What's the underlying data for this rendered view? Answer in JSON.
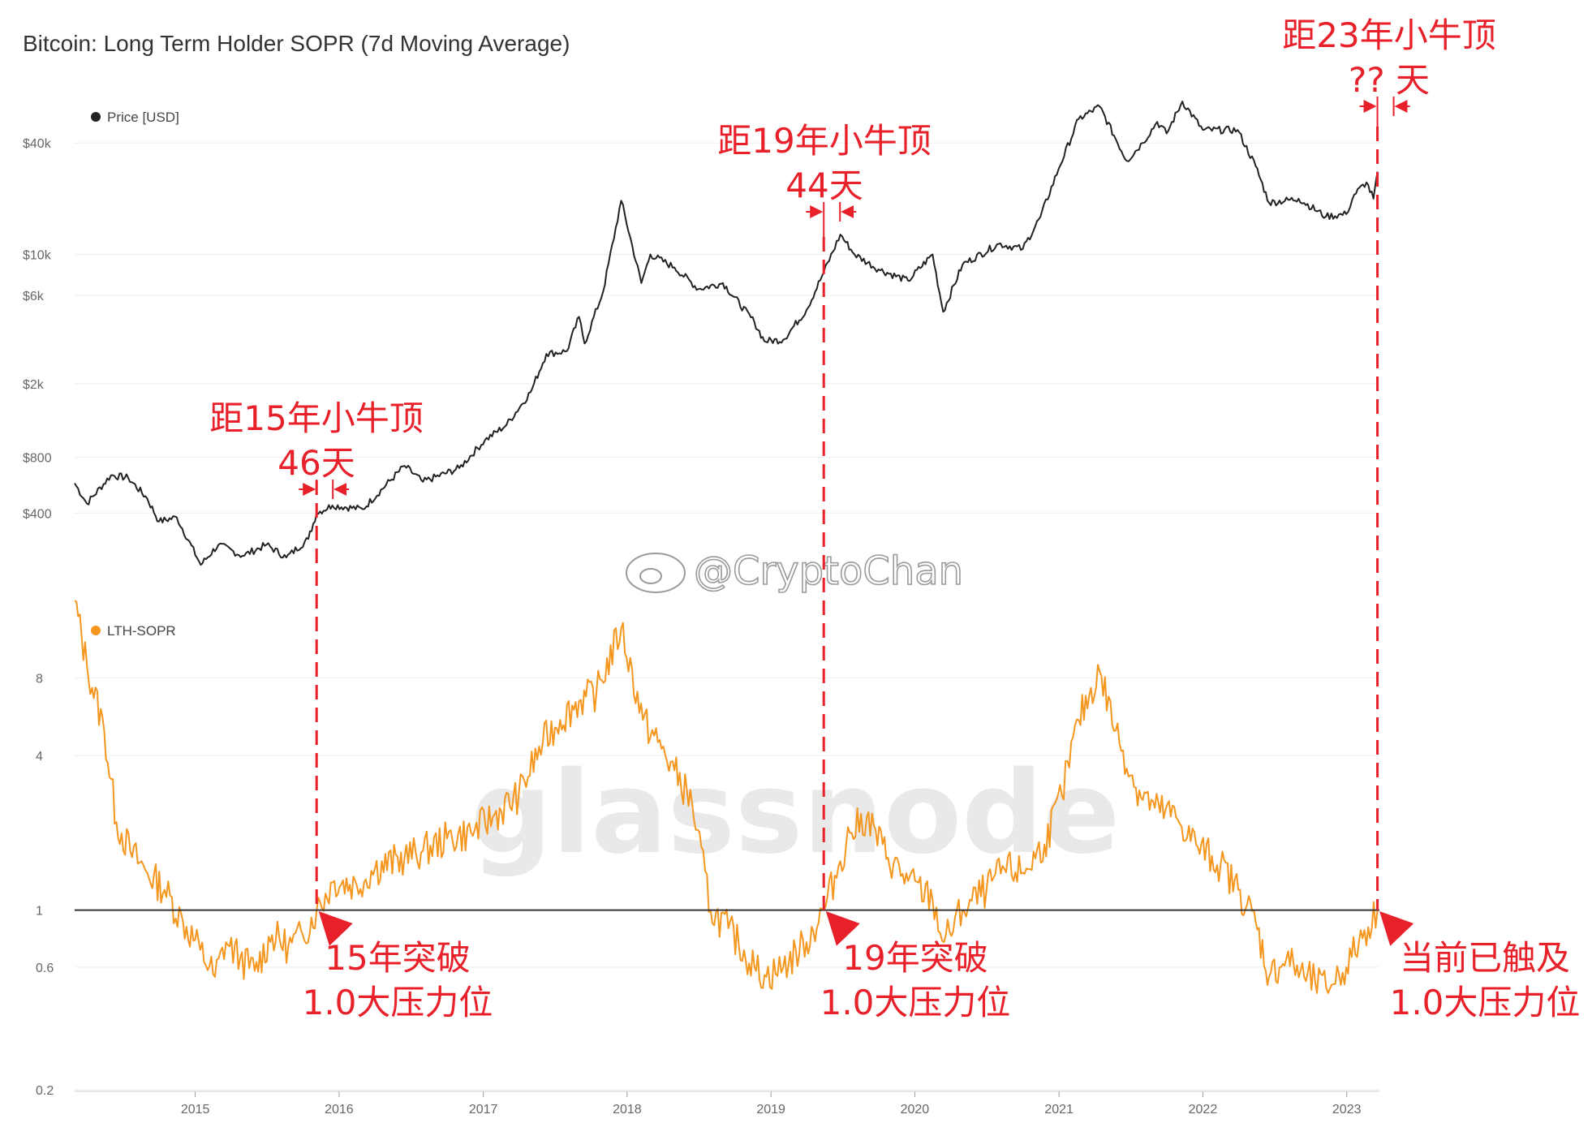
{
  "chart_data": [
    {
      "type": "line",
      "title": "Bitcoin: Long Term Holder SOPR (7d Moving Average)",
      "scale": "log",
      "legend": "top-left",
      "series": [
        {
          "name": "Price [USD]",
          "color": "#222222",
          "x": [
            "2014-03-01",
            "2014-04-01",
            "2014-06-01",
            "2014-07-15",
            "2014-09-01",
            "2014-10-01",
            "2014-11-15",
            "2015-01-15",
            "2015-03-01",
            "2015-05-01",
            "2015-07-01",
            "2015-08-20",
            "2015-10-15",
            "2015-11-05",
            "2015-12-15",
            "2016-03-01",
            "2016-06-15",
            "2016-08-01",
            "2016-11-01",
            "2017-01-05",
            "2017-03-01",
            "2017-05-01",
            "2017-06-10",
            "2017-08-01",
            "2017-09-01",
            "2017-09-15",
            "2017-11-01",
            "2017-12-17",
            "2018-02-06",
            "2018-03-01",
            "2018-05-01",
            "2018-07-01",
            "2018-09-01",
            "2018-11-20",
            "2018-12-15",
            "2019-02-01",
            "2019-04-01",
            "2019-05-15",
            "2019-06-26",
            "2019-08-01",
            "2019-10-01",
            "2019-12-15",
            "2020-02-15",
            "2020-03-13",
            "2020-05-01",
            "2020-08-01",
            "2020-10-01",
            "2020-11-15",
            "2020-12-31",
            "2021-02-20",
            "2021-04-14",
            "2021-06-22",
            "2021-08-01",
            "2021-09-07",
            "2021-10-01",
            "2021-11-10",
            "2022-01-01",
            "2022-03-30",
            "2022-05-15",
            "2022-06-18",
            "2022-09-01",
            "2022-11-09",
            "2022-12-31",
            "2023-01-20",
            "2023-02-20",
            "2023-03-10",
            "2023-03-20"
          ],
          "values": [
            580,
            450,
            640,
            620,
            480,
            360,
            380,
            210,
            270,
            235,
            270,
            230,
            290,
            400,
            440,
            420,
            720,
            590,
            700,
            990,
            1200,
            1800,
            2900,
            3000,
            4600,
            3300,
            6300,
            19500,
            7000,
            10000,
            8500,
            6500,
            7000,
            4300,
            3400,
            3450,
            5000,
            8000,
            12800,
            10000,
            8300,
            7200,
            10000,
            4900,
            8800,
            11400,
            10700,
            16000,
            29000,
            54000,
            63000,
            32000,
            40000,
            52000,
            45000,
            67000,
            47000,
            47000,
            30000,
            19000,
            20000,
            16000,
            16500,
            21000,
            24500,
            20000,
            28000
          ]
        },
        {
          "name": "LTH-SOPR",
          "color": "#f5961e",
          "x": [
            "2014-03-01",
            "2014-04-01",
            "2014-05-15",
            "2014-06-15",
            "2014-07-20",
            "2014-09-01",
            "2014-10-15",
            "2014-12-01",
            "2015-01-14",
            "2015-02-20",
            "2015-03-20",
            "2015-04-25",
            "2015-06-01",
            "2015-07-15",
            "2015-08-25",
            "2015-10-01",
            "2015-11-05",
            "2015-12-20",
            "2016-02-15",
            "2016-04-01",
            "2016-06-15",
            "2016-08-01",
            "2016-10-01",
            "2016-12-01",
            "2017-01-25",
            "2017-04-01",
            "2017-06-01",
            "2017-07-15",
            "2017-09-01",
            "2017-10-15",
            "2017-12-17",
            "2018-02-10",
            "2018-03-20",
            "2018-05-01",
            "2018-06-15",
            "2018-08-01",
            "2018-09-15",
            "2018-11-20",
            "2018-12-20",
            "2019-02-01",
            "2019-04-01",
            "2019-05-15",
            "2019-06-26",
            "2019-07-20",
            "2019-09-01",
            "2019-10-25",
            "2019-12-15",
            "2020-02-15",
            "2020-03-15",
            "2020-05-01",
            "2020-07-01",
            "2020-08-15",
            "2020-10-01",
            "2020-11-25",
            "2021-01-08",
            "2021-02-20",
            "2021-04-14",
            "2021-05-25",
            "2021-07-15",
            "2021-09-01",
            "2021-10-25",
            "2021-12-15",
            "2022-02-15",
            "2022-04-01",
            "2022-05-15",
            "2022-06-18",
            "2022-08-01",
            "2022-09-15",
            "2022-11-10",
            "2022-12-31",
            "2023-02-01",
            "2023-03-20"
          ],
          "values": [
            16,
            9,
            5,
            2.2,
            1.7,
            1.4,
            1.2,
            0.9,
            0.7,
            0.55,
            0.75,
            0.65,
            0.58,
            0.8,
            0.72,
            0.8,
            1.0,
            1.3,
            1.25,
            1.45,
            1.6,
            1.7,
            1.9,
            2.0,
            2.3,
            2.8,
            4.5,
            5.5,
            6.5,
            7.0,
            12.5,
            5.5,
            4.5,
            3.5,
            2.6,
            1.0,
            0.85,
            0.6,
            0.55,
            0.6,
            0.75,
            1.0,
            1.55,
            2.0,
            2.3,
            1.6,
            1.3,
            1.1,
            0.75,
            1.0,
            1.2,
            1.45,
            1.4,
            1.8,
            2.8,
            5.5,
            8.5,
            5.0,
            3.0,
            2.5,
            2.3,
            1.8,
            1.5,
            1.2,
            0.9,
            0.55,
            0.65,
            0.55,
            0.5,
            0.6,
            0.75,
            1.0
          ]
        }
      ],
      "x_ticks": [
        "2015",
        "2016",
        "2017",
        "2018",
        "2019",
        "2020",
        "2021",
        "2022",
        "2023"
      ],
      "price_axis": {
        "scale": "log",
        "ticks": [
          {
            "label": "$400",
            "value": 400
          },
          {
            "label": "$800",
            "value": 800
          },
          {
            "label": "$2k",
            "value": 2000
          },
          {
            "label": "$6k",
            "value": 6000
          },
          {
            "label": "$10k",
            "value": 10000
          },
          {
            "label": "$40k",
            "value": 40000
          }
        ]
      },
      "sopr_axis": {
        "scale": "log",
        "ticks": [
          {
            "label": "0.2",
            "value": 0.2
          },
          {
            "label": "0.6",
            "value": 0.6
          },
          {
            "label": "1",
            "value": 1
          },
          {
            "label": "4",
            "value": 4
          },
          {
            "label": "8",
            "value": 8
          }
        ],
        "reference_line": 1.0
      },
      "grid": true
    }
  ],
  "annotations": {
    "top": [
      {
        "id": "a15",
        "date": "2015-11-05",
        "line1": "距15年小牛顶",
        "line2": "46天"
      },
      {
        "id": "a19",
        "date": "2019-05-15",
        "line1": "距19年小牛顶",
        "line2": "44天"
      },
      {
        "id": "a23",
        "date": "2023-03-20",
        "line1": "距23年小牛顶",
        "line2": "?? 天"
      }
    ],
    "bottom": [
      {
        "id": "b15",
        "date": "2015-11-05",
        "line1": "15年突破",
        "line2": "1.0大压力位"
      },
      {
        "id": "b19",
        "date": "2019-05-15",
        "line1": "19年突破",
        "line2": "1.0大压力位"
      },
      {
        "id": "b23",
        "date": "2023-03-20",
        "line1": "当前已触及",
        "line2": "1.0大压力位"
      }
    ],
    "color": "#e8202a"
  },
  "watermarks": {
    "weibo": "@CryptoChan",
    "glassnode": "glassnode"
  }
}
